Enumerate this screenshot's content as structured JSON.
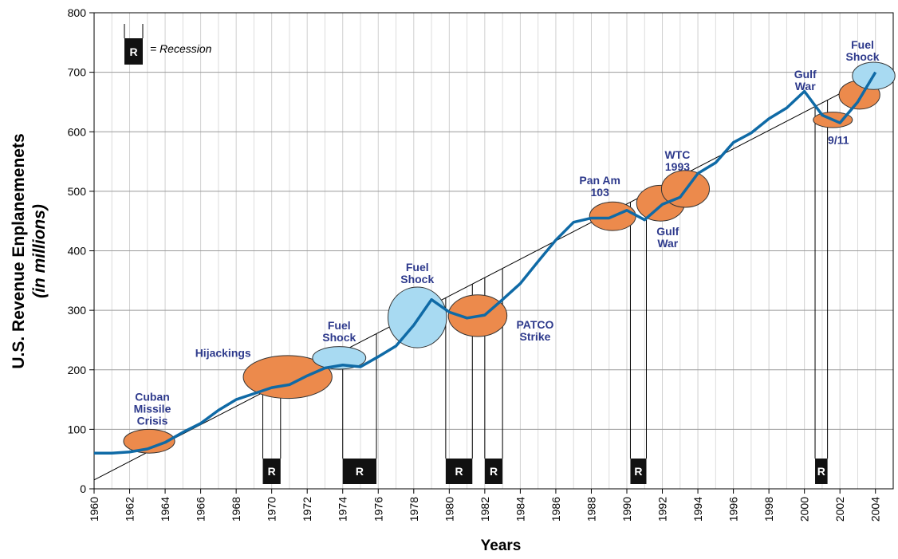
{
  "chart_data": {
    "type": "line",
    "xlabel": "Years",
    "ylabel": "U.S. Revenue Enplanemenets",
    "ylabel_sub": "(in millions)",
    "legend": {
      "symbol": "R",
      "text": "= Recession"
    },
    "xlim": [
      1960,
      2005
    ],
    "ylim": [
      0,
      800
    ],
    "xticks": [
      1960,
      1962,
      1964,
      1966,
      1968,
      1970,
      1972,
      1974,
      1976,
      1978,
      1980,
      1982,
      1984,
      1986,
      1988,
      1990,
      1992,
      1994,
      1996,
      1998,
      2000,
      2002,
      2004
    ],
    "xminor_ticks": [
      1961,
      1963,
      1965,
      1967,
      1969,
      1971,
      1973,
      1975,
      1977,
      1979,
      1981,
      1983,
      1985,
      1987,
      1989,
      1991,
      1993,
      1995,
      1997,
      1999,
      2001,
      2003,
      2005
    ],
    "yticks": [
      0,
      100,
      200,
      300,
      400,
      500,
      600,
      700,
      800
    ],
    "grid": true,
    "x": [
      1960,
      1961,
      1962,
      1963,
      1964,
      1965,
      1966,
      1967,
      1968,
      1969,
      1970,
      1971,
      1972,
      1973,
      1974,
      1975,
      1976,
      1977,
      1978,
      1979,
      1980,
      1981,
      1982,
      1983,
      1984,
      1985,
      1986,
      1987,
      1988,
      1989,
      1990,
      1991,
      1992,
      1993,
      1994,
      1995,
      1996,
      1997,
      1998,
      1999,
      2000,
      2001,
      2002,
      2003,
      2004
    ],
    "series": [
      {
        "color": "#0f6aa6",
        "values": [
          60,
          60,
          62,
          67,
          78,
          95,
          110,
          132,
          150,
          160,
          170,
          175,
          190,
          203,
          208,
          205,
          222,
          240,
          275,
          318,
          297,
          287,
          292,
          318,
          345,
          382,
          418,
          448,
          455,
          455,
          468,
          452,
          478,
          490,
          530,
          548,
          582,
          598,
          622,
          640,
          668,
          628,
          615,
          650,
          700
        ]
      }
    ],
    "trend": {
      "x": [
        1960,
        2004
      ],
      "values": [
        15,
        695
      ],
      "color": "#000000"
    },
    "recessions": {
      "label": "R",
      "periods": [
        [
          1969.5,
          1970.5
        ],
        [
          1974,
          1975.9
        ],
        [
          1979.8,
          1981.3
        ],
        [
          1982,
          1983
        ],
        [
          1990.2,
          1991.1
        ],
        [
          2000.6,
          2001.3
        ]
      ]
    },
    "events": [
      {
        "lines": [
          "Cuban",
          "Missile",
          "Crisis"
        ],
        "x": 1963.1,
        "y": 80,
        "rx": 1.44,
        "ry": 20,
        "color": "#ec8a4c"
      },
      {
        "lines": [
          "Hijackings"
        ],
        "x": 1970.9,
        "y": 188,
        "rx": 2.5,
        "ry": 36,
        "color": "#ec8a4c"
      },
      {
        "lines": [
          "Fuel",
          "Shock"
        ],
        "x": 1973.8,
        "y": 220,
        "rx": 1.5,
        "ry": 19,
        "color": "#a8daf2"
      },
      {
        "lines": [
          "Fuel",
          "Shock"
        ],
        "x": 1978.2,
        "y": 288,
        "rx": 1.65,
        "ry": 51,
        "color": "#a8daf2"
      },
      {
        "lines": [
          "PATCO",
          "Strike"
        ],
        "x": 1981.6,
        "y": 291,
        "rx": 1.65,
        "ry": 35,
        "color": "#ec8a4c"
      },
      {
        "lines": [
          "Pan Am",
          "103"
        ],
        "x": 1989.2,
        "y": 458,
        "rx": 1.3,
        "ry": 24,
        "color": "#ec8a4c"
      },
      {
        "lines": [
          "Gulf",
          "War"
        ],
        "x": 1991.9,
        "y": 480,
        "rx": 1.35,
        "ry": 30,
        "color": "#ec8a4c"
      },
      {
        "lines": [
          "WTC",
          "1993"
        ],
        "x": 1993.3,
        "y": 504,
        "rx": 1.35,
        "ry": 31,
        "color": "#ec8a4c"
      },
      {
        "lines": [
          "9/11"
        ],
        "x": 2001.6,
        "y": 620,
        "rx": 1.1,
        "ry": 13,
        "color": "#ec8a4c"
      },
      {
        "lines": [
          "Gulf",
          "War"
        ],
        "x": 2003.1,
        "y": 662,
        "rx": 1.15,
        "ry": 24,
        "color": "#ec8a4c"
      },
      {
        "lines": [
          "Fuel",
          "Shock"
        ],
        "x": 2003.9,
        "y": 694,
        "rx": 1.2,
        "ry": 23,
        "color": "#a8daf2"
      }
    ]
  }
}
